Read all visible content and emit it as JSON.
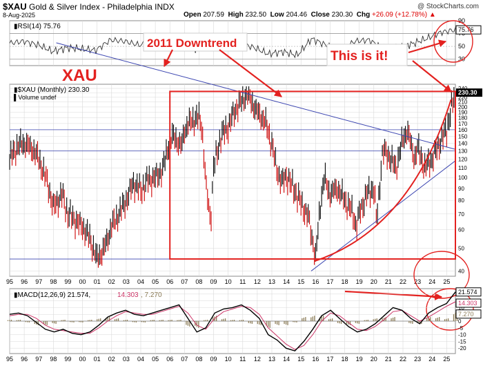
{
  "header": {
    "symbol": "$XAU",
    "name": "Gold & Silver Index - Philadelphia  INDX",
    "date": "8-Aug-2025",
    "watermark": "@ StockCharts.com",
    "open_label": "Open",
    "open": "207.59",
    "high_label": "High",
    "high": "232.50",
    "low_label": "Low",
    "low": "204.46",
    "close_label": "Close",
    "close": "230.30",
    "chg_label": "Chg",
    "chg": "+26.09 (+12.78%)",
    "chg_arrow": "▲"
  },
  "annotations": {
    "downtrend": "2011 Downtrend",
    "this_is_it": "This is it!",
    "xau": "XAU"
  },
  "chart_data": [
    {
      "type": "line",
      "panel": "rsi",
      "title": "RSI(14) 75.76",
      "ylim": [
        20,
        90
      ],
      "y_ticks": [
        30,
        50,
        70,
        90
      ],
      "reference_lines": [
        70,
        50,
        30
      ],
      "last_value": "75.76",
      "x": [
        1995,
        1996,
        1997,
        1998,
        1999,
        2000,
        2001,
        2002,
        2003,
        2004,
        2005,
        2006,
        2007,
        2008,
        2009,
        2010,
        2011,
        2012,
        2013,
        2014,
        2015,
        2016,
        2017,
        2018,
        2019,
        2020,
        2021,
        2022,
        2023,
        2024,
        2025,
        2025.6
      ],
      "values": [
        55,
        58,
        52,
        42,
        48,
        46,
        44,
        60,
        58,
        52,
        56,
        60,
        58,
        45,
        62,
        60,
        55,
        48,
        38,
        42,
        36,
        62,
        52,
        44,
        58,
        60,
        46,
        48,
        54,
        62,
        72,
        75.76
      ]
    },
    {
      "type": "line",
      "panel": "price",
      "title": "$XAU (Monthly) 230.30",
      "volume_label": "Volume undef",
      "scale": "log",
      "ylim": [
        38,
        250
      ],
      "y_ticks": [
        40,
        50,
        60,
        70,
        80,
        90,
        100,
        110,
        120,
        130,
        140,
        150,
        160,
        170,
        180,
        190,
        200,
        210,
        220,
        230,
        240
      ],
      "last_value": "230.30",
      "x": [
        1995,
        1995.5,
        1996,
        1996.6,
        1997,
        1997.6,
        1998,
        1998.6,
        1999,
        1999.6,
        2000,
        2000.5,
        2001,
        2001.5,
        2002,
        2002.5,
        2003,
        2003.5,
        2004,
        2004.5,
        2005,
        2005.5,
        2006,
        2006.3,
        2006.8,
        2007,
        2007.5,
        2008,
        2008.2,
        2008.5,
        2008.8,
        2009,
        2009.5,
        2010,
        2010.5,
        2011,
        2011.3,
        2011.8,
        2012,
        2012.5,
        2013,
        2013.3,
        2013.7,
        2014,
        2014.5,
        2015,
        2015.5,
        2015.9,
        2016,
        2016.3,
        2016.6,
        2017,
        2017.5,
        2018,
        2018.5,
        2018.8,
        2019,
        2019.5,
        2020,
        2020.2,
        2020.6,
        2021,
        2021.5,
        2022,
        2022.3,
        2022.8,
        2023,
        2023.5,
        2024,
        2024.5,
        2025,
        2025.3,
        2025.6
      ],
      "values": [
        120,
        135,
        140,
        132,
        120,
        95,
        75,
        85,
        70,
        65,
        62,
        55,
        45,
        50,
        62,
        70,
        80,
        95,
        88,
        98,
        100,
        108,
        145,
        150,
        135,
        160,
        175,
        180,
        165,
        90,
        65,
        110,
        150,
        165,
        195,
        215,
        230,
        200,
        190,
        175,
        140,
        110,
        95,
        102,
        90,
        78,
        68,
        50,
        45,
        75,
        100,
        85,
        90,
        80,
        72,
        62,
        70,
        85,
        90,
        65,
        130,
        125,
        110,
        145,
        160,
        120,
        135,
        110,
        120,
        140,
        160,
        195,
        230.3
      ]
    },
    {
      "type": "line",
      "panel": "macd",
      "title": "MACD(12,26,9) 21.574, 14.303, 7.270",
      "ylim": [
        -24,
        24
      ],
      "y_ticks": [
        -20,
        -15,
        -10,
        -5,
        0,
        5,
        10,
        15,
        20
      ],
      "series": [
        {
          "name": "MACD(12,26,9)",
          "last": "21.574",
          "values": [
            5,
            6,
            4,
            -1,
            -6,
            -8,
            -6,
            -9,
            -10,
            -8,
            -3,
            3,
            6,
            8,
            5,
            4,
            6,
            8,
            10,
            12,
            2,
            -8,
            -5,
            6,
            9,
            10,
            12,
            8,
            2,
            -10,
            -14,
            -20,
            -22,
            -15,
            -6,
            4,
            8,
            2,
            -4,
            -8,
            -6,
            -2,
            4,
            10,
            8,
            2,
            -2,
            6,
            10,
            13,
            21.574
          ]
        },
        {
          "name": "signal",
          "last": "14.303",
          "values": [
            4,
            5,
            5,
            2,
            -3,
            -6,
            -7,
            -8,
            -9,
            -9,
            -5,
            0,
            4,
            7,
            6,
            5,
            5,
            7,
            9,
            11,
            6,
            -3,
            -6,
            2,
            7,
            9,
            11,
            10,
            5,
            -5,
            -11,
            -17,
            -21,
            -18,
            -10,
            0,
            6,
            4,
            -1,
            -6,
            -7,
            -4,
            1,
            7,
            8,
            4,
            0,
            3,
            7,
            11,
            14.303
          ]
        },
        {
          "name": "histogram",
          "last": "7.270",
          "values": [
            1,
            1,
            -1,
            -3,
            -3,
            -2,
            1,
            -1,
            -1,
            1,
            2,
            3,
            2,
            1,
            -1,
            -1,
            1,
            1,
            1,
            1,
            -4,
            -5,
            1,
            4,
            2,
            1,
            1,
            -2,
            -3,
            -5,
            -3,
            -3,
            -1,
            3,
            4,
            4,
            2,
            -2,
            -3,
            -2,
            1,
            2,
            3,
            3,
            0,
            -2,
            -2,
            3,
            3,
            2,
            7.27
          ]
        }
      ],
      "x_start": 1995,
      "x_end": 2025.6
    }
  ],
  "x_axis": {
    "labels": [
      "95",
      "96",
      "97",
      "98",
      "99",
      "00",
      "01",
      "02",
      "03",
      "04",
      "05",
      "06",
      "07",
      "08",
      "09",
      "10",
      "11",
      "12",
      "13",
      "14",
      "15",
      "16",
      "17",
      "18",
      "19",
      "20",
      "21",
      "22",
      "23",
      "24",
      "25"
    ],
    "start": 1995,
    "end": 2025.6
  },
  "colors": {
    "annotation_red": "#e3211f",
    "trendline_blue": "#3a44b0",
    "price_up": "#000000",
    "price_down": "#cc0000",
    "macd_line": "#000000",
    "signal_line": "#cc3366",
    "histogram": "#8a7a55",
    "grid": "#d8d8d8"
  }
}
